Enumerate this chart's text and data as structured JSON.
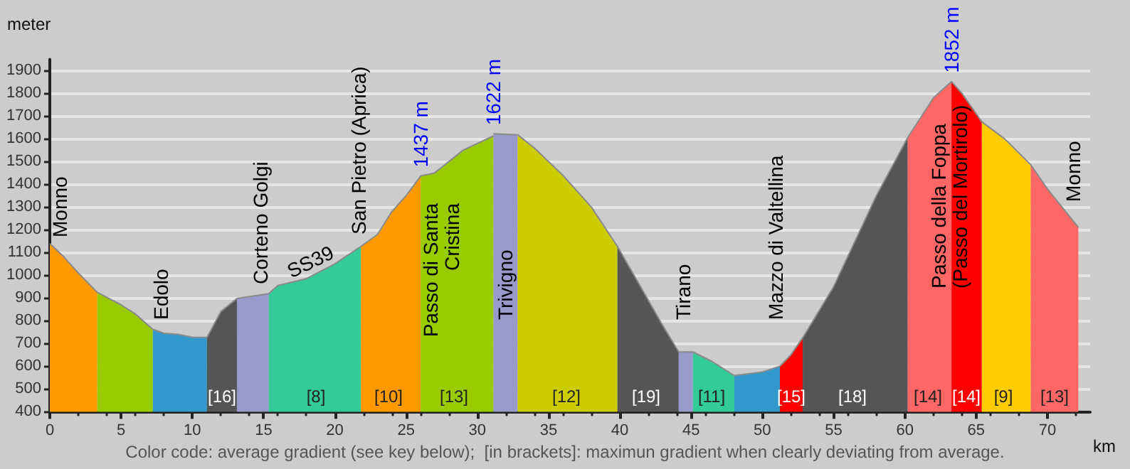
{
  "chart_data": {
    "type": "area",
    "xlabel": "km",
    "ylabel": "meter",
    "xlim": [
      0,
      73
    ],
    "ylim": [
      400,
      1950
    ],
    "xticks": [
      0,
      5,
      10,
      15,
      20,
      25,
      30,
      35,
      40,
      45,
      50,
      55,
      60,
      65,
      70
    ],
    "yticks": [
      400,
      500,
      600,
      700,
      800,
      900,
      1000,
      1100,
      1200,
      1300,
      1400,
      1500,
      1600,
      1700,
      1800,
      1900
    ],
    "grid": "y",
    "marker": "none",
    "series": [
      {
        "color": "#ff9900",
        "x": [
          0,
          1,
          2,
          3.33
        ],
        "values": [
          1140,
          1080,
          1010,
          925
        ]
      },
      {
        "color": "#99cc00",
        "x": [
          3.33,
          5,
          6,
          7.23
        ],
        "values": [
          925,
          870,
          830,
          762
        ]
      },
      {
        "color": "#3399cc",
        "x": [
          7.23,
          8,
          9,
          10,
          11.03
        ],
        "values": [
          762,
          745,
          740,
          728,
          727
        ]
      },
      {
        "color": "#555555",
        "x": [
          11.03,
          12,
          13.13
        ],
        "values": [
          727,
          840,
          898
        ]
      },
      {
        "color": "#9999cc",
        "x": [
          13.13,
          15.37
        ],
        "values": [
          898,
          919
        ]
      },
      {
        "color": "#33cc99",
        "x": [
          15.37,
          16,
          18,
          20,
          21.83
        ],
        "values": [
          919,
          955,
          985,
          1050,
          1127
        ]
      },
      {
        "color": "#ff9900",
        "x": [
          21.83,
          23,
          24,
          25,
          26.03
        ],
        "values": [
          1127,
          1180,
          1280,
          1350,
          1437
        ],
        "value_labels": [
          null,
          null,
          null,
          null,
          "1437 m"
        ]
      },
      {
        "color": "#99cc00",
        "x": [
          26.03,
          27,
          28,
          29,
          31.13
        ],
        "values": [
          1437,
          1450,
          1500,
          1550,
          1613
        ]
      },
      {
        "color": "#9999cc",
        "x": [
          31.13,
          32.83
        ],
        "values": [
          1622,
          1618
        ],
        "value_labels": [
          "1622 m",
          null
        ]
      },
      {
        "color": "#cccc00",
        "x": [
          32.83,
          34,
          36,
          38,
          39.83
        ],
        "values": [
          1618,
          1560,
          1440,
          1300,
          1127
        ]
      },
      {
        "color": "#555555",
        "x": [
          39.83,
          41,
          43,
          44.13
        ],
        "values": [
          1127,
          1000,
          780,
          663
        ]
      },
      {
        "color": "#9999cc",
        "x": [
          44.13,
          45.13
        ],
        "values": [
          663,
          663
        ]
      },
      {
        "color": "#33cc99",
        "x": [
          45.13,
          46.5,
          48.03
        ],
        "values": [
          663,
          620,
          559
        ]
      },
      {
        "color": "#3399cc",
        "x": [
          48.03,
          50,
          51.23
        ],
        "values": [
          559,
          575,
          600
        ]
      },
      {
        "color": "#ff0000",
        "x": [
          51.23,
          52,
          52.83
        ],
        "values": [
          600,
          650,
          725
        ]
      },
      {
        "color": "#555555",
        "x": [
          52.83,
          55,
          58,
          60.2
        ],
        "values": [
          725,
          950,
          1350,
          1606
        ]
      },
      {
        "color": "#ff6666",
        "x": [
          60.2,
          62,
          63.27
        ],
        "values": [
          1606,
          1780,
          1852
        ],
        "value_labels": [
          null,
          null,
          "1852 m"
        ]
      },
      {
        "color": "#ff0000",
        "x": [
          63.27,
          64,
          65.4
        ],
        "values": [
          1852,
          1800,
          1675
        ]
      },
      {
        "color": "#ffcc00",
        "x": [
          65.4,
          67,
          68.83
        ],
        "values": [
          1675,
          1600,
          1486
        ]
      },
      {
        "color": "#ff6666",
        "x": [
          68.83,
          70,
          72.17
        ],
        "values": [
          1486,
          1380,
          1211
        ]
      }
    ],
    "annotations": [
      "Monno",
      "Edolo",
      "Corteno Golgi",
      "SS39",
      "San Pietro (Aprica)",
      "Passo di Santa\nCristina",
      "Trivigno",
      "Tirano",
      "Mazzo di Valtellina",
      "Passo della Foppa\n(Passo del Mortirolo)",
      "Monno",
      "[16]",
      "[8]",
      "[10]",
      "[13]",
      "[12]",
      "[19]",
      "[11]",
      "[15]",
      "[18]",
      "[14]",
      "[14]",
      "[9]",
      "[13]",
      "Color code: average gradient (see key below);  [in brackets]: maximun gradient when clearly deviating from average."
    ]
  }
}
